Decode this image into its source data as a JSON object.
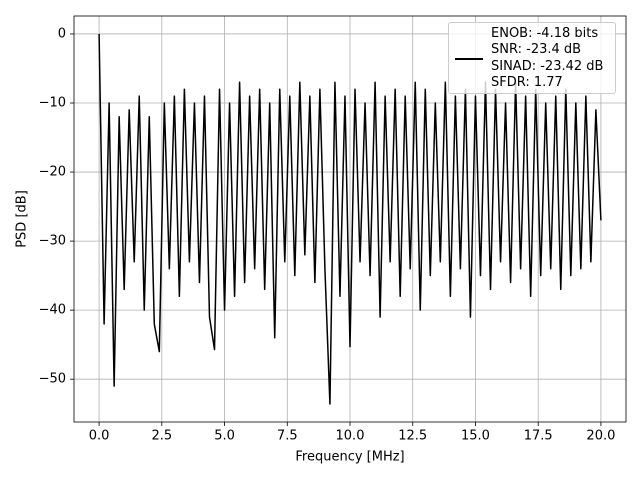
{
  "chart_data": {
    "type": "line",
    "xlabel": "Frequency [MHz]",
    "ylabel": "PSD [dB]",
    "x": [
      0,
      0.2,
      0.4,
      0.6,
      0.8,
      1.0,
      1.2,
      1.4,
      1.6,
      1.8,
      2.0,
      2.2,
      2.4,
      2.6,
      2.8,
      3.0,
      3.2,
      3.4,
      3.6,
      3.8,
      4.0,
      4.2,
      4.4,
      4.6,
      4.8,
      5.0,
      5.2,
      5.4,
      5.6,
      5.8,
      6.0,
      6.2,
      6.4,
      6.6,
      6.8,
      7.0,
      7.2,
      7.4,
      7.6,
      7.8,
      8.0,
      8.2,
      8.4,
      8.6,
      8.8,
      9.0,
      9.2,
      9.4,
      9.6,
      9.8,
      10.0,
      10.2,
      10.4,
      10.6,
      10.8,
      11.0,
      11.2,
      11.4,
      11.6,
      11.8,
      12.0,
      12.2,
      12.4,
      12.6,
      12.8,
      13.0,
      13.2,
      13.4,
      13.6,
      13.8,
      14.0,
      14.2,
      14.4,
      14.6,
      14.8,
      15.0,
      15.2,
      15.4,
      15.6,
      15.8,
      16.0,
      16.2,
      16.4,
      16.6,
      16.8,
      17.0,
      17.2,
      17.4,
      17.6,
      17.8,
      18.0,
      18.2,
      18.4,
      18.6,
      18.8,
      19.0,
      19.2,
      19.4,
      19.6,
      19.8,
      20.0
    ],
    "series": [
      {
        "name": "ENOB: -4.18 bits\nSNR: -23.4 dB\nSINAD: -23.42 dB\nSFDR: 1.77",
        "color": "#000000",
        "values": [
          0,
          -42,
          -10,
          -51,
          -12,
          -37,
          -11,
          -33,
          -9,
          -40,
          -12,
          -42,
          -46,
          -10,
          -34,
          -9,
          -38,
          -8,
          -33,
          -10,
          -36,
          -9,
          -41,
          -45.7,
          -8,
          -40,
          -10,
          -38,
          -7,
          -36,
          -9,
          -34,
          -8,
          -37,
          -10,
          -44,
          -8,
          -33,
          -9,
          -35,
          -7,
          -32,
          -9,
          -36,
          -8,
          -34,
          -53.6,
          -7,
          -38,
          -9,
          -45.3,
          -8,
          -33,
          -10,
          -35,
          -7,
          -41,
          -9,
          -33,
          -8,
          -38,
          -9,
          -34,
          -7,
          -40,
          -8,
          -35,
          -10,
          -33,
          -7,
          -38,
          -9,
          -34,
          -8,
          -41,
          -9,
          -35,
          -7,
          -37,
          -8,
          -33,
          -10,
          -36,
          -7,
          -34,
          -9,
          -38,
          -8,
          -35,
          -10,
          -34,
          -9,
          -37,
          -8,
          -35,
          -10,
          -34,
          -9,
          -33,
          -11,
          -27
        ]
      }
    ],
    "xlim": [
      -1,
      21
    ],
    "ylim": [
      -56.2,
      2.6
    ],
    "xticks": [
      {
        "value": 0,
        "label": "0.0"
      },
      2.5,
      {
        "value": 5,
        "label": "5.0"
      },
      7.5,
      {
        "value": 10,
        "label": "10.0"
      },
      12.5,
      {
        "value": 15,
        "label": "15.0"
      },
      17.5,
      {
        "value": 20,
        "label": "20.0"
      }
    ],
    "yticks": [
      {
        "value": 0,
        "label": "0"
      },
      {
        "value": -10,
        "label": "−10"
      },
      {
        "value": -20,
        "label": "−20"
      },
      {
        "value": -30,
        "label": "−30"
      },
      {
        "value": -40,
        "label": "−40"
      },
      {
        "value": -50,
        "label": "−50"
      }
    ],
    "grid": true,
    "legend": "upper right"
  }
}
